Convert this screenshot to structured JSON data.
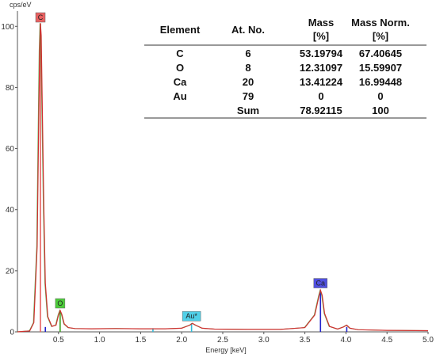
{
  "chart_data": {
    "type": "line",
    "ylabel": "cps/eV",
    "xlabel": "Energy [keV]",
    "xlim": [
      0.0,
      5.0
    ],
    "ylim": [
      0,
      105
    ],
    "x_ticks": [
      "0.5",
      "1.0",
      "1.5",
      "2.0",
      "2.5",
      "3.0",
      "3.5",
      "4.0",
      "4.5",
      "5.0"
    ],
    "y_ticks": [
      "0",
      "20",
      "40",
      "60",
      "80",
      "100"
    ],
    "grid": false,
    "series": [
      {
        "color": "#d03030",
        "x": [
          0.0,
          0.15,
          0.2,
          0.24,
          0.26,
          0.27,
          0.28,
          0.29,
          0.3,
          0.32,
          0.34,
          0.37,
          0.42,
          0.47,
          0.5,
          0.52,
          0.54,
          0.57,
          0.62,
          0.7,
          0.9,
          1.2,
          1.5,
          1.8,
          2.0,
          2.1,
          2.13,
          2.17,
          2.25,
          2.4,
          2.8,
          3.2,
          3.5,
          3.62,
          3.67,
          3.69,
          3.71,
          3.74,
          3.8,
          3.9,
          3.97,
          4.01,
          4.05,
          4.15,
          4.5,
          5.0
        ],
        "values": [
          0,
          0.3,
          3.0,
          28,
          70,
          92,
          101,
          97,
          78,
          42,
          16,
          5,
          1.8,
          2.2,
          5.5,
          7.0,
          5.8,
          2.6,
          1.4,
          1.1,
          1.0,
          1.1,
          1.0,
          1.0,
          1.2,
          2.2,
          2.8,
          2.2,
          1.2,
          0.9,
          0.8,
          0.8,
          1.4,
          5.5,
          11.5,
          13.6,
          12.0,
          6.0,
          1.8,
          0.9,
          1.6,
          2.2,
          1.2,
          0.7,
          0.5,
          0.4
        ]
      }
    ],
    "markers": [
      {
        "label": "C",
        "x": 0.28,
        "height": 101,
        "color": "#e86060"
      },
      {
        "label": "O",
        "x": 0.52,
        "height": 7.0,
        "color": "#4ccc3a"
      },
      {
        "label": "Au*",
        "x": 2.12,
        "height": 2.8,
        "color": "#50d0e8"
      },
      {
        "label": "Ca",
        "x": 3.69,
        "height": 13.6,
        "color": "#5050e0"
      }
    ],
    "lines": [
      {
        "x": 0.28,
        "height": 101,
        "color": "#e86060"
      },
      {
        "x": 0.52,
        "height": 7.0,
        "color": "#3aa020"
      },
      {
        "x": 3.69,
        "height": 13.6,
        "color": "#2222cc"
      },
      {
        "x": 4.01,
        "height": 1.6,
        "color": "#2222cc"
      },
      {
        "x": 0.34,
        "height": 1.6,
        "color": "#2222cc"
      },
      {
        "x": 2.12,
        "height": 2.8,
        "color": "#30b8d8"
      },
      {
        "x": 1.65,
        "height": 1.2,
        "color": "#30b8d8"
      }
    ],
    "table": {
      "headers": [
        [
          "Element"
        ],
        [
          "At. No."
        ],
        [
          "Mass",
          "[%]"
        ],
        [
          "Mass Norm.",
          "[%]"
        ]
      ],
      "rows": [
        [
          "C",
          "6",
          "53.19794",
          "67.40645"
        ],
        [
          "O",
          "8",
          "12.31097",
          "15.59907"
        ],
        [
          "Ca",
          "20",
          "13.41224",
          "16.99448"
        ],
        [
          "Au",
          "79",
          "0",
          "0"
        ],
        [
          "",
          "Sum",
          "78.92115",
          "100"
        ]
      ]
    }
  }
}
